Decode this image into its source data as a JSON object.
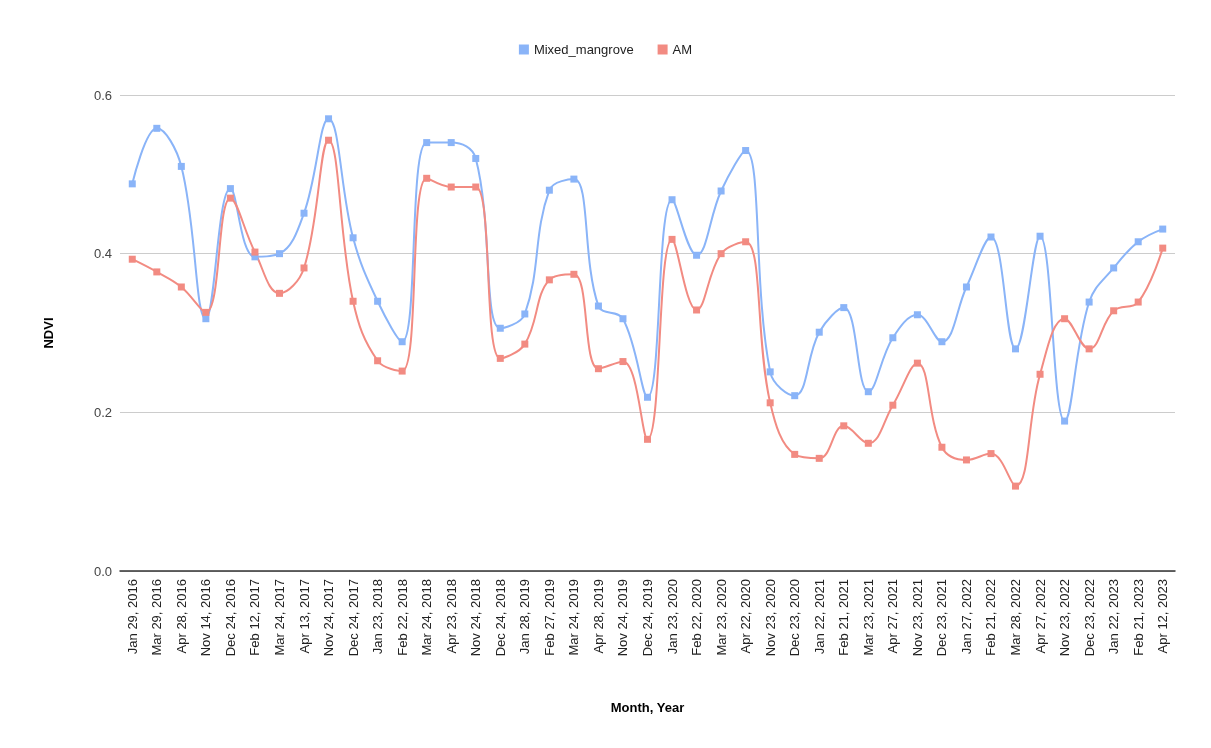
{
  "chart_data": {
    "type": "line",
    "xlabel": "Month, Year",
    "ylabel": "NDVI",
    "categories": [
      "Jan 29, 2016",
      "Mar 29, 2016",
      "Apr 28, 2016",
      "Nov 14, 2016",
      "Dec 24, 2016",
      "Feb 12, 2017",
      "Mar 24, 2017",
      "Apr 13, 2017",
      "Nov 24, 2017",
      "Dec 24, 2017",
      "Jan 23, 2018",
      "Feb 22, 2018",
      "Mar 24, 2018",
      "Apr 23, 2018",
      "Nov 24, 2018",
      "Dec 24, 2018",
      "Jan 28, 2019",
      "Feb 27, 2019",
      "Mar 24, 2019",
      "Apr 28, 2019",
      "Nov 24, 2019",
      "Dec 24, 2019",
      "Jan 23, 2020",
      "Feb 22, 2020",
      "Mar 23, 2020",
      "Apr 22, 2020",
      "Nov 23, 2020",
      "Dec 23, 2020",
      "Jan 22, 2021",
      "Feb 21, 2021",
      "Mar 23, 2021",
      "Apr 27, 2021",
      "Nov 23, 2021",
      "Dec 23, 2021",
      "Jan 27, 2022",
      "Feb 21, 2022",
      "Mar 28, 2022",
      "Apr 27, 2022",
      "Nov 23, 2022",
      "Dec 23, 2022",
      "Jan 22, 2023",
      "Feb 21, 2023",
      "Apr 12, 2023"
    ],
    "series": [
      {
        "name": "Mixed_mangrove",
        "color": "#8ab4f8",
        "values": [
          0.488,
          0.558,
          0.51,
          0.318,
          0.482,
          0.396,
          0.4,
          0.451,
          0.57,
          0.42,
          0.34,
          0.289,
          0.54,
          0.54,
          0.52,
          0.306,
          0.324,
          0.48,
          0.494,
          0.334,
          0.318,
          0.219,
          0.468,
          0.398,
          0.479,
          0.53,
          0.251,
          0.221,
          0.301,
          0.332,
          0.226,
          0.294,
          0.323,
          0.289,
          0.358,
          0.421,
          0.28,
          0.422,
          0.189,
          0.339,
          0.382,
          0.415,
          0.431
        ]
      },
      {
        "name": "AM",
        "color": "#f28b82",
        "values": [
          0.393,
          0.377,
          0.358,
          0.326,
          0.47,
          0.402,
          0.35,
          0.382,
          0.543,
          0.34,
          0.265,
          0.252,
          0.495,
          0.484,
          0.484,
          0.268,
          0.286,
          0.367,
          0.374,
          0.255,
          0.264,
          0.166,
          0.418,
          0.329,
          0.4,
          0.415,
          0.212,
          0.147,
          0.142,
          0.183,
          0.161,
          0.209,
          0.262,
          0.156,
          0.14,
          0.148,
          0.107,
          0.248,
          0.318,
          0.28,
          0.328,
          0.339,
          0.407
        ]
      }
    ],
    "ylim": [
      0,
      0.6
    ],
    "yticks": [
      {
        "value": 0,
        "label": "0.0"
      },
      0.2,
      0.4,
      0.6
    ],
    "grid": "y",
    "legend": "top",
    "marker": "square",
    "line_style": "solid"
  }
}
